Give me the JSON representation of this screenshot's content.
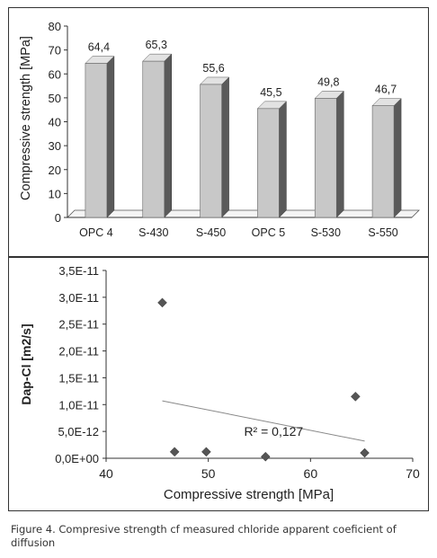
{
  "chart_data": [
    {
      "type": "bar",
      "title": "",
      "xlabel": "",
      "ylabel": "Compressive strength [MPa]",
      "ylim": [
        0,
        80
      ],
      "yticks": [
        "0",
        "10",
        "20",
        "30",
        "40",
        "50",
        "60",
        "70",
        "80"
      ],
      "categories": [
        "OPC 4",
        "S-430",
        "S-450",
        "OPC 5",
        "S-530",
        "S-550"
      ],
      "values": [
        64.4,
        65.3,
        55.6,
        45.5,
        49.8,
        46.7
      ],
      "data_labels": [
        "64,4",
        "65,3",
        "55,6",
        "45,5",
        "49,8",
        "46,7"
      ],
      "bar_color": "#c8c8c8",
      "bar_side_color": "#5a5a5a",
      "grid": false,
      "style": "3d-column"
    },
    {
      "type": "scatter",
      "title": "",
      "xlabel": "Compressive strength [MPa]",
      "ylabel": "Dap-Cl [m2/s]",
      "xlim": [
        40,
        70
      ],
      "ylim": [
        0,
        3.5e-11
      ],
      "xticks": [
        "40",
        "50",
        "60",
        "70"
      ],
      "yticks": [
        "0,0E+00",
        "5,0E-12",
        "1,0E-11",
        "1,5E-11",
        "2,0E-11",
        "2,5E-11",
        "3,0E-11",
        "3,5E-11"
      ],
      "points": [
        {
          "x": 45.5,
          "y": 2.9e-11
        },
        {
          "x": 46.7,
          "y": 1.2e-12
        },
        {
          "x": 49.8,
          "y": 1.2e-12
        },
        {
          "x": 55.6,
          "y": 3e-13
        },
        {
          "x": 64.4,
          "y": 1.15e-11
        },
        {
          "x": 65.3,
          "y": 1e-12
        }
      ],
      "trendline": {
        "x": [
          45.5,
          65.3
        ],
        "y": [
          1.07e-11,
          3.2e-12
        ]
      },
      "annotation": "R² = 0,127",
      "marker_color": "#555555",
      "grid": false
    }
  ],
  "caption": "Figure  4. Compresive strength cf measured chloride apparent coeficient of diffusion"
}
